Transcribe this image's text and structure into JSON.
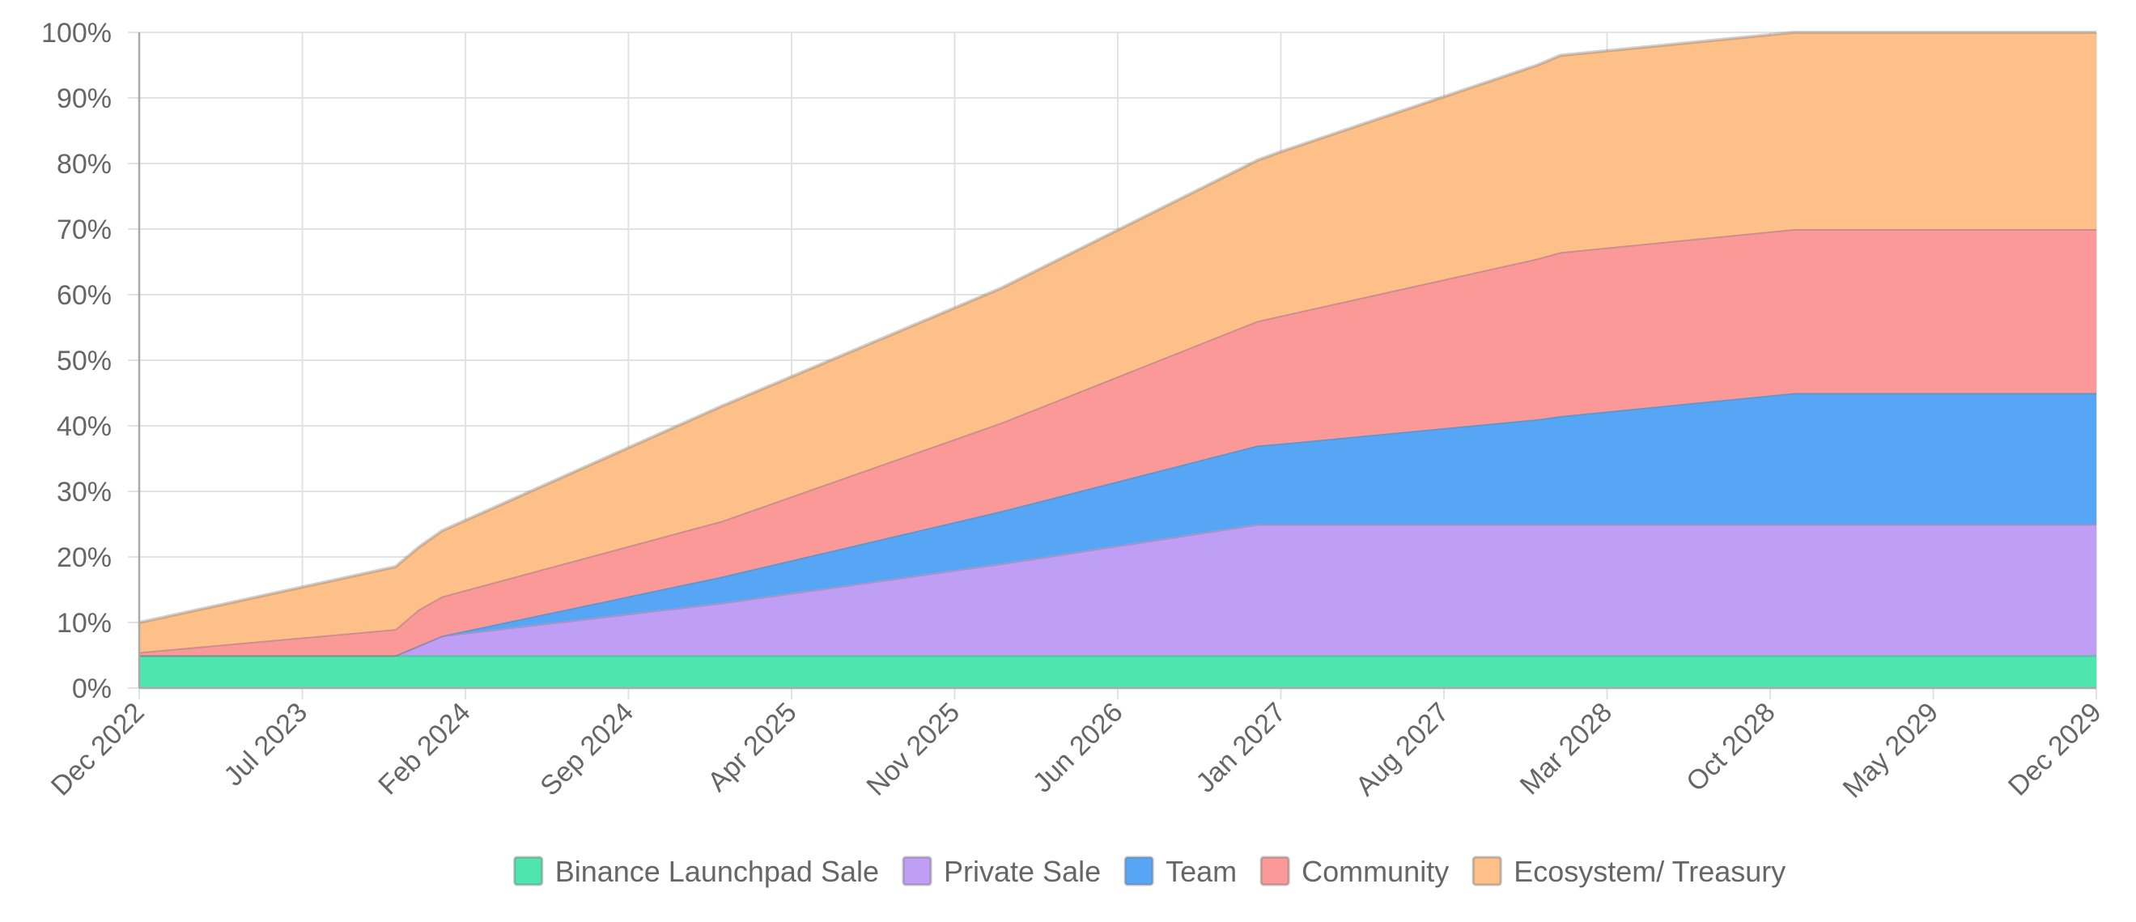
{
  "chart_data": {
    "type": "area",
    "stacked": true,
    "title": "",
    "xlabel": "",
    "ylabel": "",
    "ylim": [
      0,
      100
    ],
    "yticks": [
      "0%",
      "10%",
      "20%",
      "30%",
      "40%",
      "50%",
      "60%",
      "70%",
      "80%",
      "90%",
      "100%"
    ],
    "xticks": [
      "Dec 2022",
      "Jul 2023",
      "Feb 2024",
      "Sep 2024",
      "Apr 2025",
      "Nov 2025",
      "Jun 2026",
      "Jan 2027",
      "Aug 2027",
      "Mar 2028",
      "Oct 2028",
      "May 2029",
      "Dec 2029"
    ],
    "grid": true,
    "legend_position": "bottom",
    "x": [
      "2022-12",
      "2023-11",
      "2023-12",
      "2024-01",
      "2025-01",
      "2026-01",
      "2026-12",
      "2027-01",
      "2027-12",
      "2028-01",
      "2028-11",
      "2029-12"
    ],
    "series": [
      {
        "name": "Binance Launchpad Sale",
        "color": "#4de6b0",
        "values": [
          5,
          5,
          5,
          5,
          5,
          5,
          5,
          5,
          5,
          5,
          5,
          5
        ]
      },
      {
        "name": "Private Sale",
        "color": "#bf9ef5",
        "values": [
          0,
          0,
          1.5,
          3,
          8,
          14,
          20,
          20,
          20,
          20,
          20,
          20
        ]
      },
      {
        "name": "Team",
        "color": "#57a6f6",
        "values": [
          0,
          0,
          0,
          0,
          4,
          8,
          12,
          12.3,
          16,
          16.5,
          20,
          20
        ]
      },
      {
        "name": "Community",
        "color": "#fb9898",
        "values": [
          0.5,
          4,
          5.5,
          6,
          8.5,
          13.5,
          19,
          19.5,
          24.5,
          25,
          25,
          25
        ]
      },
      {
        "name": "Ecosystem/ Treasury",
        "color": "#fdc088",
        "values": [
          4.5,
          9.5,
          9.5,
          10,
          17.5,
          20.5,
          24.5,
          25,
          29.5,
          30,
          30,
          30
        ]
      }
    ]
  }
}
